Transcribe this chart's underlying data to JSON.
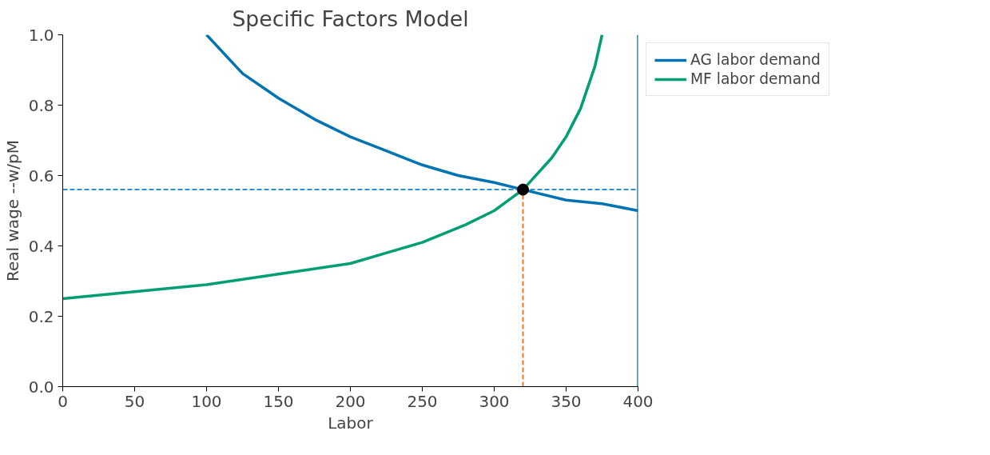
{
  "chart_data": {
    "type": "line",
    "title": "Specific Factors Model",
    "xlabel": "Labor",
    "ylabel": "Real wage --w/pM",
    "xlim": [
      0,
      400
    ],
    "ylim": [
      0,
      1
    ],
    "xticks": [
      0,
      50,
      100,
      150,
      200,
      250,
      300,
      350,
      400
    ],
    "yticks": [
      {
        "value": 0,
        "label": "0.0"
      },
      0.2,
      0.4,
      0.6,
      0.8,
      {
        "value": 1,
        "label": "1.0"
      }
    ],
    "grid": false,
    "legend": "top right",
    "line_style": "solid",
    "marker": "none",
    "series": [
      {
        "name": "AG labor demand",
        "color": "#0173b2",
        "x": [
          100,
          125,
          150,
          175,
          200,
          225,
          250,
          275,
          300,
          320,
          350,
          375,
          400
        ],
        "values": [
          1.0,
          0.89,
          0.82,
          0.76,
          0.71,
          0.67,
          0.63,
          0.6,
          0.58,
          0.56,
          0.53,
          0.52,
          0.5
        ]
      },
      {
        "name": "MF labor demand",
        "color": "#029e73",
        "x": [
          0,
          50,
          100,
          150,
          200,
          250,
          280,
          300,
          320,
          340,
          350,
          360,
          370,
          375
        ],
        "values": [
          0.25,
          0.27,
          0.29,
          0.32,
          0.35,
          0.41,
          0.46,
          0.5,
          0.56,
          0.65,
          0.71,
          0.79,
          0.91,
          1.0
        ]
      },
      {
        "color": "#2b8fd6",
        "x": [
          0,
          400
        ],
        "values": [
          0.56,
          0.56
        ],
        "line_style": "dashed"
      },
      {
        "color": "#e0802a",
        "x": [
          320,
          320
        ],
        "values": [
          0,
          0.56
        ],
        "line_style": "dashed"
      },
      {
        "type": "scatter",
        "color": "#000000",
        "x": [
          320
        ],
        "values": [
          0.56
        ],
        "marker": "circle"
      }
    ],
    "ref_lines": [
      {
        "axis": "x",
        "value": 400,
        "color": "#0173b2",
        "line_style": "solid"
      }
    ]
  }
}
